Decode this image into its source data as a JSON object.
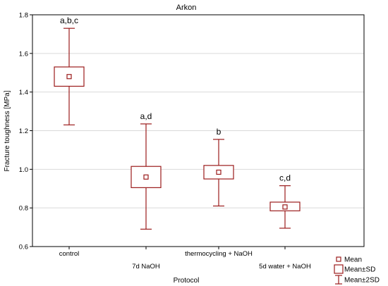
{
  "chart_data": {
    "type": "box",
    "title": "Arkon",
    "xlabel": "Protocol",
    "ylabel": "Fracture toughness [MPa]",
    "ylim": [
      0.6,
      1.8
    ],
    "yticks": [
      "0.6",
      "0.8",
      "1.0",
      "1.2",
      "1.4",
      "1.6",
      "1.8"
    ],
    "grid": true,
    "color": "#9b1c1c",
    "categories": [
      "control",
      "7d NaOH",
      "thermocycling + NaOH",
      "5d water + NaOH"
    ],
    "series": [
      {
        "mean": 1.48,
        "sd_low": 1.43,
        "sd_high": 1.53,
        "sd2_low": 1.23,
        "sd2_high": 1.73,
        "letters": "a,b,c"
      },
      {
        "mean": 0.96,
        "sd_low": 0.905,
        "sd_high": 1.015,
        "sd2_low": 0.69,
        "sd2_high": 1.235,
        "letters": "a,d"
      },
      {
        "mean": 0.985,
        "sd_low": 0.95,
        "sd_high": 1.02,
        "sd2_low": 0.81,
        "sd2_high": 1.155,
        "letters": "b"
      },
      {
        "mean": 0.805,
        "sd_low": 0.785,
        "sd_high": 0.83,
        "sd2_low": 0.695,
        "sd2_high": 0.915,
        "letters": "c,d"
      }
    ],
    "legend": {
      "position": "bottom-right",
      "items": [
        "Mean",
        "Mean±SD",
        "Mean±2SD"
      ]
    }
  }
}
